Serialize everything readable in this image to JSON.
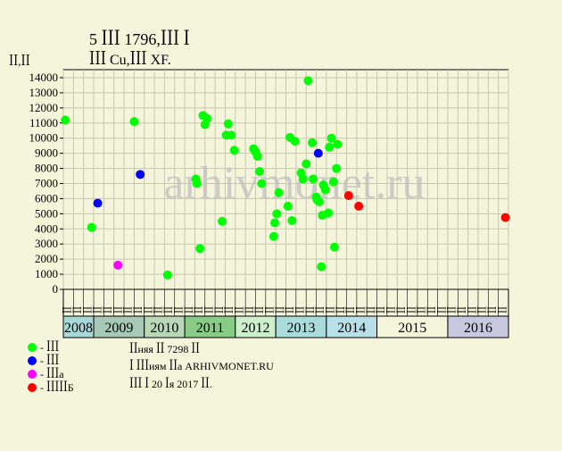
{
  "page": {
    "title_line1": "5 ꟾꟾꟾ 1796,ꟾꟾꟾ ꟾ",
    "title_line2": "ꟾꟾꟾ Cu,ꟾꟾꟾ XF.",
    "unit_label": "ꟾꟾ,ꟾꟾ",
    "watermark": "arhivmonet.ru",
    "notes": [
      "ꟾꟾняя ꟾꟾ 7298 ꟾꟾ",
      "ꟾ ꟾꟾꟾиям ꟾꟾа ARHIVMONET.RU",
      "ꟾꟾꟾ ꟾ 20 ꟾя 2017 ꟾꟾ."
    ]
  },
  "colors": {
    "background": "#f5f5dc",
    "plot_bg": "#f5f5dc",
    "grid": "#c8c8b0",
    "green": "#00ff00",
    "blue": "#0000ff",
    "magenta": "#ff00ff",
    "red": "#ff0000",
    "year_colors": [
      "#a8d8d8",
      "#a8c8b8",
      "#b8d8b8",
      "#88cc88",
      "#ccf0cc",
      "#aadcdc",
      "#b8e0e8",
      "#f5f5dc",
      "#c8c8e0"
    ]
  },
  "legend": [
    {
      "label": "- ꟾꟾꟾ",
      "color": "#00ff00"
    },
    {
      "label": "- ꟾꟾꟾ",
      "color": "#0000ff"
    },
    {
      "label": "- ꟾꟾꟾа",
      "color": "#ff00ff"
    },
    {
      "label": "- ꟾꟾꟾꟾꟾБ",
      "color": "#ff0000"
    }
  ],
  "chart_data": {
    "type": "scatter",
    "ylim": [
      0,
      14000
    ],
    "yticks": [
      0,
      1000,
      2000,
      3000,
      4000,
      5000,
      6000,
      7000,
      8000,
      9000,
      10000,
      11000,
      12000,
      13000,
      14000
    ],
    "grid": true,
    "x_unit": "month index (0 = first column)",
    "xlim": [
      0,
      44
    ],
    "month_labels": [
      "ꟾꟾ",
      "ꟾꟾ",
      "ꟾꟾ",
      "ꟾꟾ",
      "ꟾꟾ",
      "ꟾꟾ",
      "ꟾꟾ",
      "ꟾꟾ",
      "ꟾꟾ",
      "ꟾꟾ",
      "ꟾꟾ",
      "ꟾꟾ",
      "ꟾꟾ",
      "ꟾꟾ",
      "ꟾꟾ",
      "ꟾꟾ",
      "ꟾꟾ",
      "ꟾꟾ",
      "ꟾꟾ",
      "ꟾꟾ",
      "ꟾꟾ",
      "ꟾꟾ",
      "ꟾꟾ",
      "ꟾꟾ",
      "ꟾꟾ",
      "ꟾꟾ",
      "ꟾꟾ",
      "ꟾꟾ",
      "ꟾꟾ",
      "ꟾꟾ",
      "ꟾꟾ",
      "ꟾꟾ",
      "ꟾꟾ",
      "ꟾꟾ",
      "ꟾꟾ",
      "ꟾꟾ",
      "ꟾꟾ",
      "ꟾꟾ",
      "ꟾꟾ",
      "ꟾꟾ",
      "ꟾꟾ",
      "ꟾꟾ",
      "ꟾꟾ",
      "ꟾꟾ"
    ],
    "years": [
      {
        "label": "2008",
        "start": 0,
        "end": 3,
        "small": true
      },
      {
        "label": "2009",
        "start": 3,
        "end": 8
      },
      {
        "label": "2010",
        "start": 8,
        "end": 12
      },
      {
        "label": "2011",
        "start": 12,
        "end": 17
      },
      {
        "label": "2012",
        "start": 17,
        "end": 21
      },
      {
        "label": "2013",
        "start": 21,
        "end": 26
      },
      {
        "label": "2014",
        "start": 26,
        "end": 31
      },
      {
        "label": "2015",
        "start": 31,
        "end": 38
      },
      {
        "label": "2016",
        "start": 38,
        "end": 44
      }
    ],
    "series": [
      {
        "color": "#00ff00",
        "points": [
          [
            0.2,
            11200
          ],
          [
            2.8,
            4100
          ],
          [
            7.0,
            11100
          ],
          [
            10.3,
            950
          ],
          [
            13.1,
            7300
          ],
          [
            13.2,
            7000
          ],
          [
            13.5,
            2700
          ],
          [
            13.8,
            11500
          ],
          [
            14.0,
            10900
          ],
          [
            14.2,
            11300
          ],
          [
            15.7,
            4500
          ],
          [
            16.1,
            10200
          ],
          [
            16.3,
            10950
          ],
          [
            16.6,
            10200
          ],
          [
            16.9,
            9200
          ],
          [
            18.8,
            9300
          ],
          [
            19.0,
            9100
          ],
          [
            19.2,
            8800
          ],
          [
            19.4,
            7800
          ],
          [
            19.6,
            7000
          ],
          [
            20.8,
            3500
          ],
          [
            20.9,
            4400
          ],
          [
            21.1,
            5000
          ],
          [
            21.3,
            6400
          ],
          [
            22.2,
            5500
          ],
          [
            22.4,
            10050
          ],
          [
            22.6,
            4550
          ],
          [
            22.9,
            9800
          ],
          [
            23.5,
            7700
          ],
          [
            23.7,
            7300
          ],
          [
            24.0,
            8300
          ],
          [
            24.2,
            13800
          ],
          [
            24.6,
            9700
          ],
          [
            24.7,
            7300
          ],
          [
            25.0,
            6100
          ],
          [
            25.1,
            5900
          ],
          [
            25.3,
            5800
          ],
          [
            25.5,
            1500
          ],
          [
            25.6,
            4900
          ],
          [
            25.7,
            6900
          ],
          [
            25.9,
            6600
          ],
          [
            26.2,
            5050
          ],
          [
            26.3,
            9400
          ],
          [
            26.5,
            10000
          ],
          [
            26.7,
            7100
          ],
          [
            26.8,
            2800
          ],
          [
            27.0,
            8000
          ],
          [
            27.1,
            9600
          ]
        ]
      },
      {
        "color": "#0000ff",
        "points": [
          [
            3.4,
            5700
          ],
          [
            7.6,
            7600
          ],
          [
            25.2,
            9000
          ]
        ]
      },
      {
        "color": "#ff00ff",
        "points": [
          [
            5.4,
            1600
          ]
        ]
      },
      {
        "color": "#ff0000",
        "points": [
          [
            28.2,
            6200
          ],
          [
            29.2,
            5500
          ],
          [
            43.7,
            4750
          ]
        ]
      }
    ]
  }
}
